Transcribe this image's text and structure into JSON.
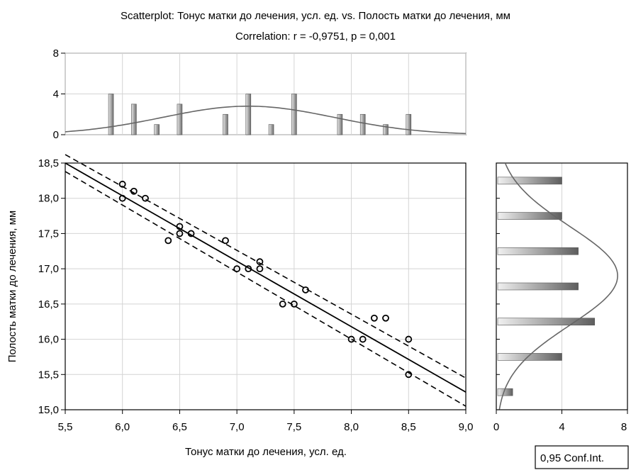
{
  "chart_data": {
    "type": "scatter",
    "title": "Scatterplot: Тонус матки до лечения, усл. ед. vs. Полость матки до лечения, мм",
    "subtitle": "Correlation: r = -0,9751, p = 0,001",
    "xlabel": "Тонус матки до лечения, усл. ед.",
    "ylabel": "Полость матки до лечения, мм",
    "xlim": [
      5.5,
      9.0
    ],
    "ylim": [
      15.0,
      18.5
    ],
    "x_ticks": [
      "5,5",
      "6,0",
      "6,5",
      "7,0",
      "7,5",
      "8,0",
      "8,5",
      "9,0"
    ],
    "y_ticks": [
      "15,0",
      "15,5",
      "16,0",
      "16,5",
      "17,0",
      "17,5",
      "18,0",
      "18,5"
    ],
    "grid": true,
    "points": {
      "x": [
        6.0,
        6.0,
        6.1,
        6.2,
        6.4,
        6.5,
        6.5,
        6.6,
        6.9,
        7.0,
        7.1,
        7.2,
        7.2,
        7.4,
        7.5,
        7.6,
        8.0,
        8.1,
        8.2,
        8.3,
        8.5,
        8.5
      ],
      "y": [
        18.2,
        18.0,
        18.1,
        18.0,
        17.4,
        17.6,
        17.5,
        17.5,
        17.4,
        17.0,
        17.0,
        17.1,
        17.0,
        16.5,
        16.5,
        16.7,
        16.0,
        16.0,
        16.3,
        16.3,
        16.0,
        15.5
      ]
    },
    "regression_line": {
      "x": [
        5.5,
        9.0
      ],
      "y": [
        18.5,
        15.25
      ]
    },
    "conf_band_upper": {
      "x": [
        5.5,
        9.0
      ],
      "y": [
        18.62,
        15.45
      ]
    },
    "conf_band_lower": {
      "x": [
        5.5,
        9.0
      ],
      "y": [
        18.38,
        15.05
      ]
    },
    "legend": {
      "label": "0,95 Conf.Int.",
      "placement": "bottom-right"
    },
    "x_histogram": {
      "ylim": [
        0,
        8
      ],
      "y_ticks": [
        "0",
        "4",
        "8"
      ],
      "bins": [
        5.9,
        6.1,
        6.3,
        6.5,
        6.9,
        7.1,
        7.3,
        7.5,
        7.9,
        8.1,
        8.3,
        8.5
      ],
      "counts": [
        4,
        3,
        1,
        3,
        2,
        4,
        1,
        4,
        2,
        2,
        1,
        2
      ],
      "normal_curve": {
        "mean": 7.1,
        "sd": 0.75,
        "peak": 2.8
      }
    },
    "y_histogram": {
      "xlim": [
        0,
        8
      ],
      "x_ticks": [
        "0",
        "4",
        "8"
      ],
      "bins": [
        18.25,
        17.75,
        17.25,
        16.75,
        16.25,
        15.75,
        15.25
      ],
      "counts": [
        4,
        4,
        5,
        5,
        6,
        4,
        1
      ],
      "normal_curve": {
        "mean": 16.9,
        "sd": 0.7,
        "peak": 7.4
      }
    }
  }
}
